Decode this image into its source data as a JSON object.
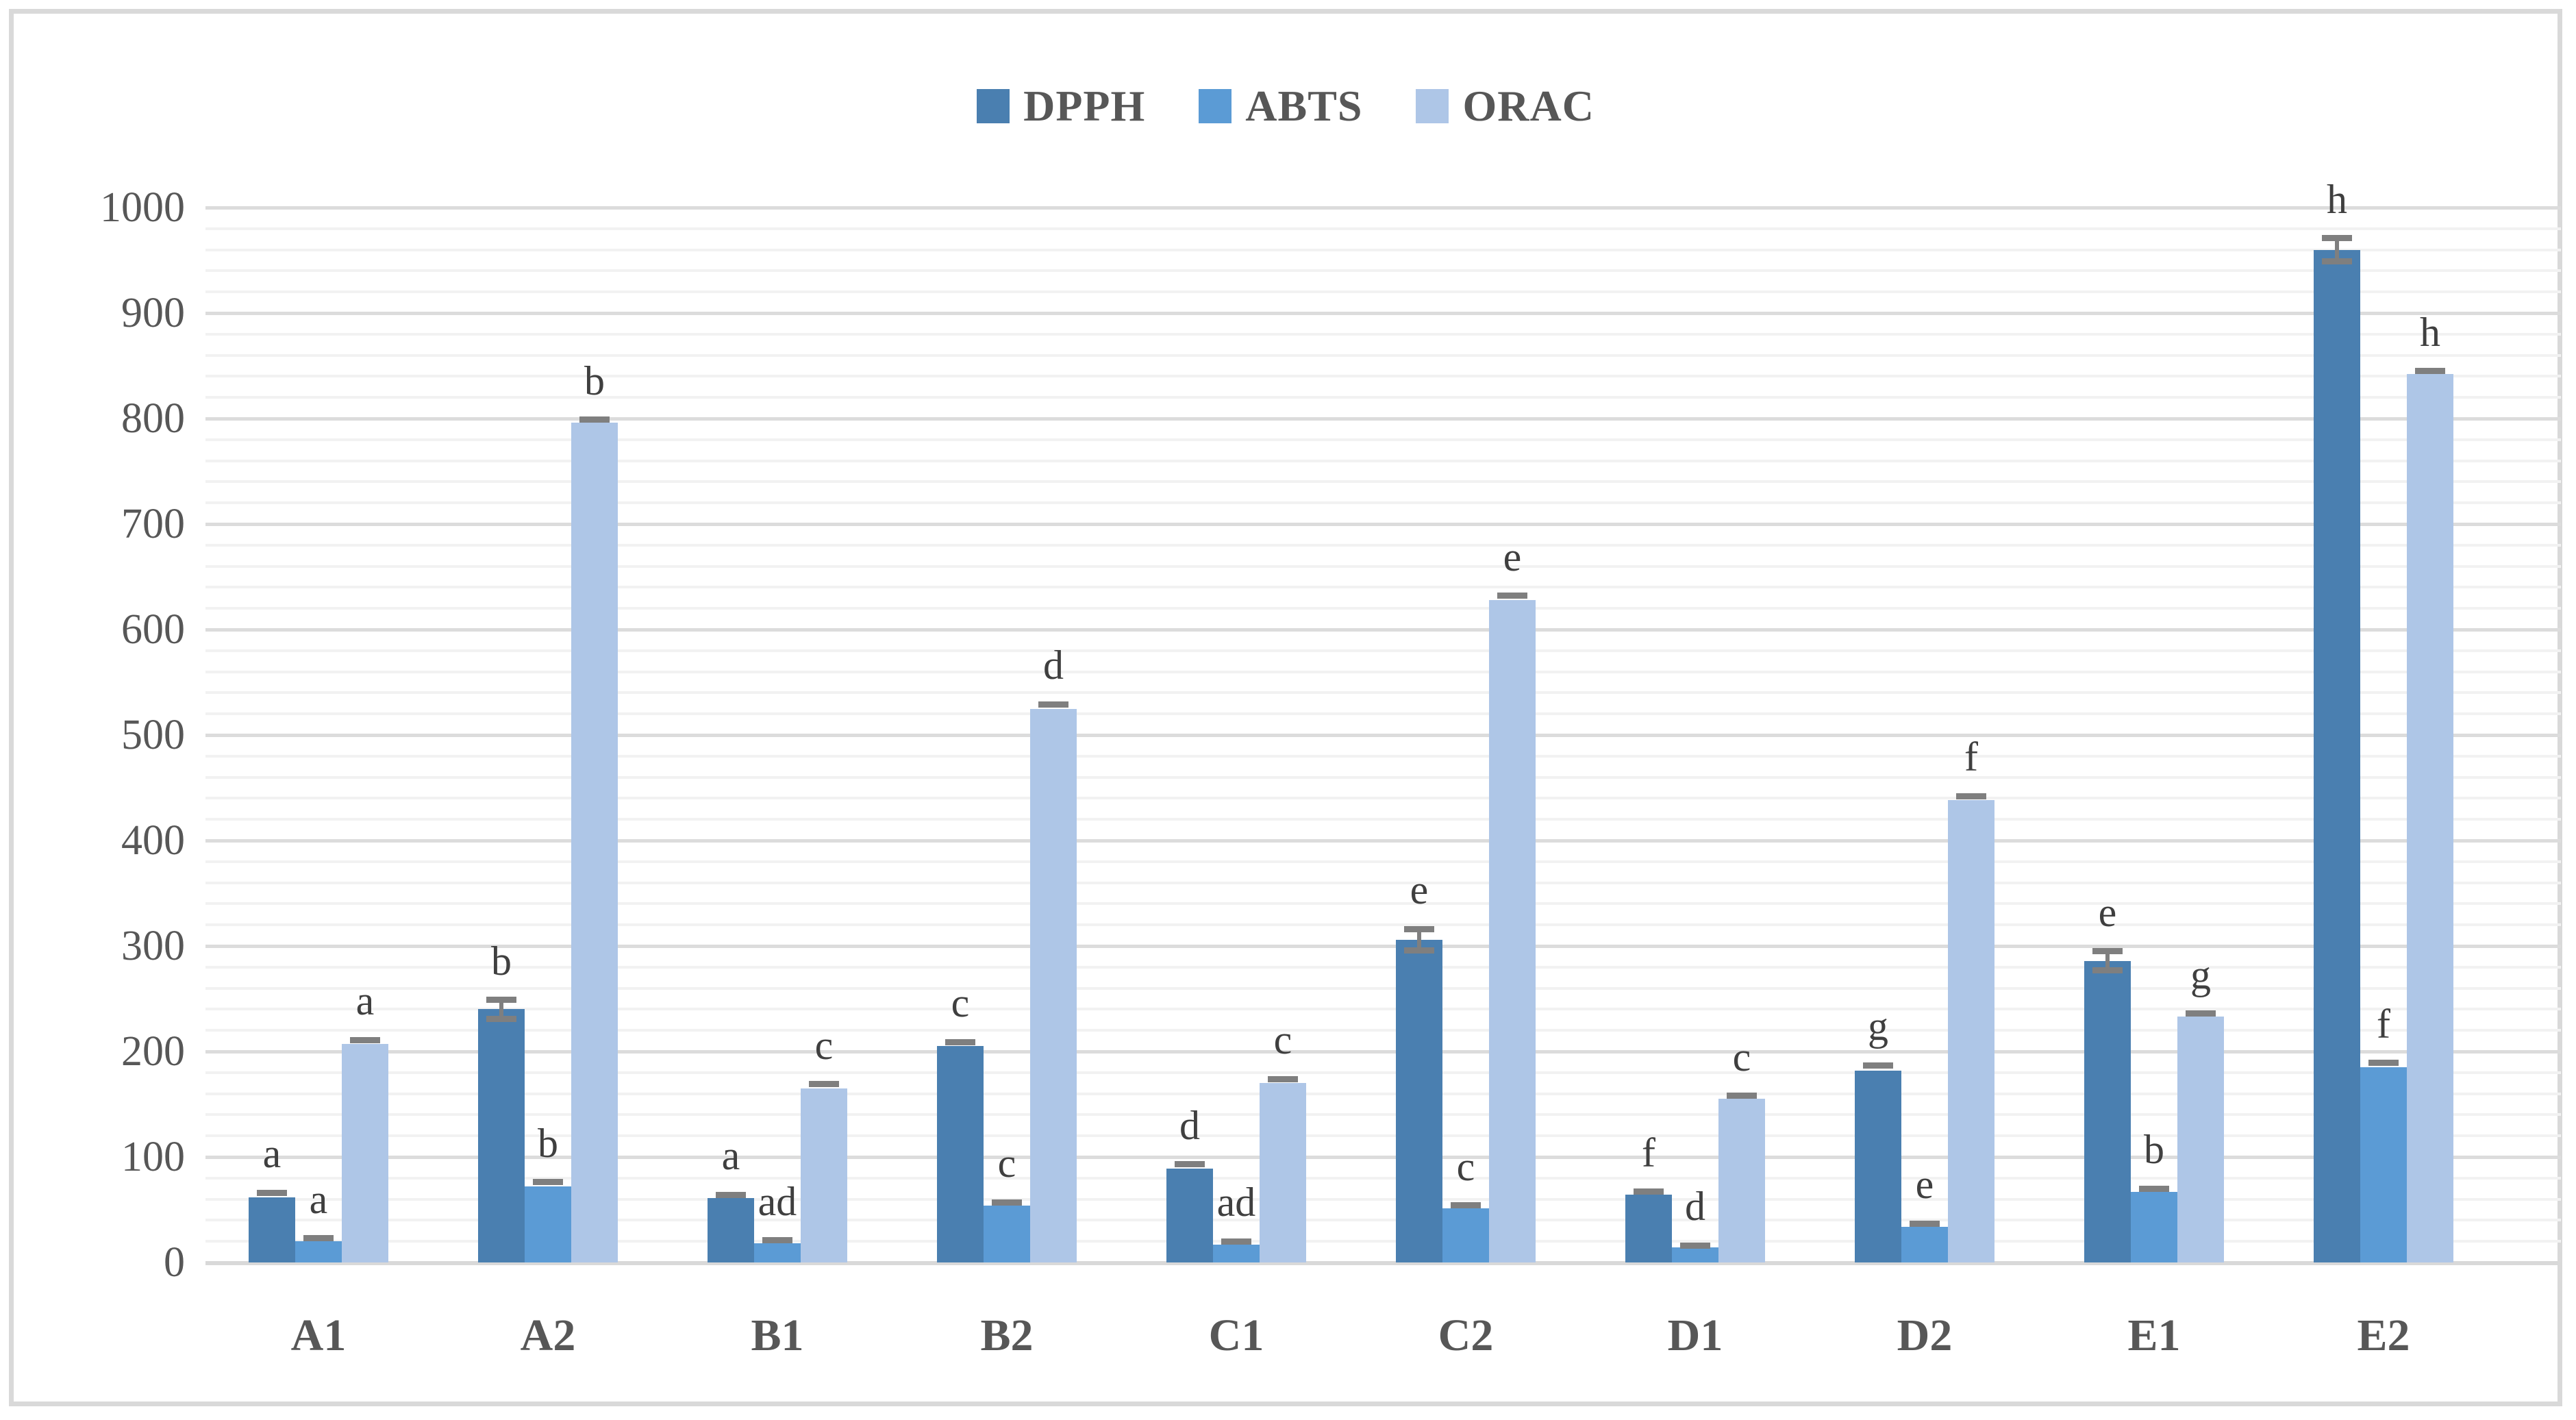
{
  "chart_data": {
    "type": "bar",
    "title": "",
    "xlabel": "",
    "ylabel": "",
    "categories": [
      "A1",
      "A2",
      "B1",
      "B2",
      "C1",
      "C2",
      "D1",
      "D2",
      "E1",
      "E2"
    ],
    "series": [
      {
        "name": "DPPH",
        "color": "#4A7FB0",
        "values": [
          62,
          240,
          61,
          205,
          89,
          306,
          64,
          182,
          286,
          960
        ],
        "letters": [
          "a",
          "b",
          "a",
          "c",
          "d",
          "e",
          "f",
          "g",
          "e",
          "h"
        ],
        "errors": [
          4,
          9,
          3,
          4,
          4,
          10,
          3,
          5,
          9,
          11
        ]
      },
      {
        "name": "ABTS",
        "color": "#5B9BD5",
        "values": [
          20,
          72,
          18,
          54,
          17,
          51,
          14,
          34,
          67,
          185
        ],
        "letters": [
          "a",
          "b",
          "ad",
          "c",
          "ad",
          "c",
          "d",
          "e",
          "b",
          "f"
        ],
        "errors": [
          3,
          4,
          3,
          3,
          3,
          3,
          2,
          3,
          3,
          4
        ]
      },
      {
        "name": "ORAC",
        "color": "#AEC6E7",
        "values": [
          207,
          796,
          165,
          525,
          170,
          628,
          155,
          438,
          233,
          842
        ],
        "letters": [
          "a",
          "b",
          "c",
          "d",
          "c",
          "e",
          "c",
          "f",
          "g",
          "h"
        ],
        "errors": [
          4,
          3,
          4,
          4,
          4,
          4,
          3,
          4,
          3,
          3
        ]
      }
    ],
    "ylim": [
      0,
      1000
    ],
    "y_major_step": 100,
    "y_minor_step": 20,
    "y_tick_labels": [
      "0",
      "100",
      "200",
      "300",
      "400",
      "500",
      "600",
      "700",
      "800",
      "900",
      "1000"
    ],
    "legend_position": "top-center",
    "legend_labels": [
      "DPPH",
      "ABTS",
      "ORAC"
    ],
    "grid": "horizontal",
    "colors": {
      "error_bar": "#7f7f7f",
      "grid_minor": "#f2f2f2",
      "grid_major": "#dcdcdc",
      "figure_border": "#d9d9d9",
      "axis_text": "#575757",
      "letter_text": "#3f3f3f",
      "background": "#ffffff"
    }
  }
}
